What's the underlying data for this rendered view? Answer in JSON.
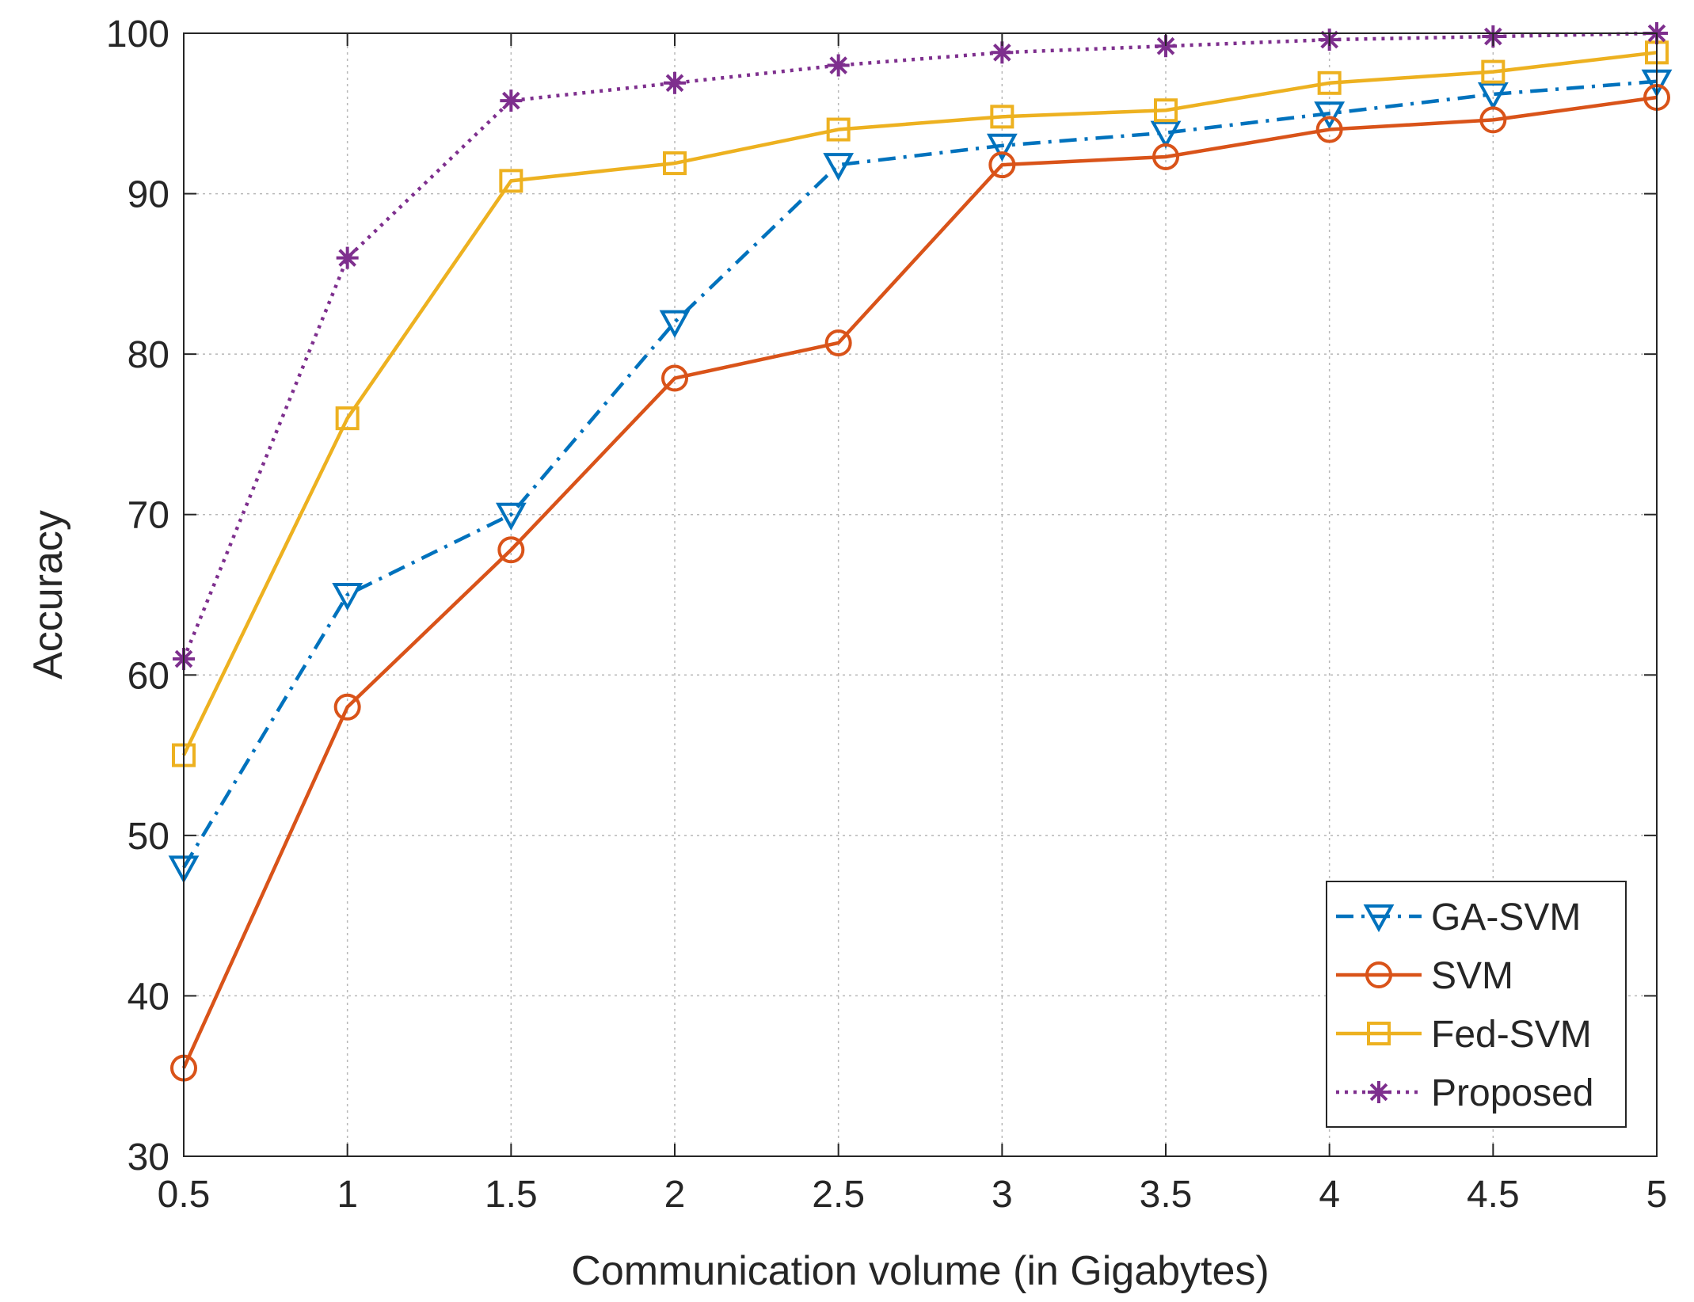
{
  "chart_data": {
    "type": "line",
    "title": "",
    "xlabel": "Communication volume (in Gigabytes)",
    "ylabel": "Accuracy",
    "x": [
      0.5,
      1,
      1.5,
      2,
      2.5,
      3,
      3.5,
      4,
      4.5,
      5
    ],
    "xlim": [
      0.5,
      5
    ],
    "ylim": [
      30,
      100
    ],
    "xticks": [
      "0.5",
      "1",
      "1.5",
      "2",
      "2.5",
      "3",
      "3.5",
      "4",
      "4.5",
      "5"
    ],
    "yticks": [
      "30",
      "40",
      "50",
      "60",
      "70",
      "80",
      "90",
      "100"
    ],
    "grid": true,
    "legend_position": "bottom-right",
    "series": [
      {
        "name": "GA-SVM",
        "color": "#0072BD",
        "marker": "triangle-down",
        "line": "dashdot",
        "values": [
          48,
          65,
          70,
          82,
          91.8,
          93,
          93.8,
          95,
          96.2,
          97
        ]
      },
      {
        "name": "SVM",
        "color": "#D95319",
        "marker": "circle",
        "line": "solid",
        "values": [
          35.5,
          58,
          67.8,
          78.5,
          80.7,
          91.8,
          92.3,
          94,
          94.6,
          96
        ]
      },
      {
        "name": "Fed-SVM",
        "color": "#EDB120",
        "marker": "square",
        "line": "solid",
        "values": [
          55,
          76,
          90.8,
          91.9,
          94,
          94.8,
          95.2,
          96.9,
          97.6,
          98.8
        ]
      },
      {
        "name": "Proposed",
        "color": "#7E2F8E",
        "marker": "asterisk",
        "line": "dotted",
        "values": [
          61,
          86,
          95.8,
          96.9,
          98,
          98.8,
          99.2,
          99.6,
          99.8,
          100
        ]
      }
    ]
  }
}
